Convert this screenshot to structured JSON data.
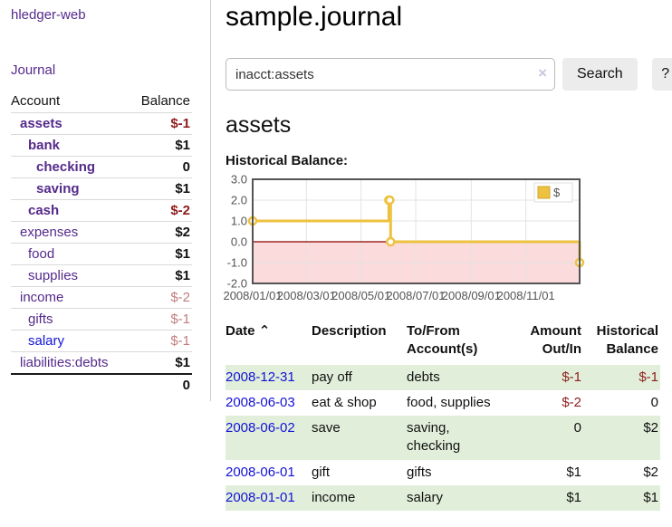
{
  "app": {
    "brand": "hledger-web"
  },
  "sidebar": {
    "journal_link": "Journal",
    "accounts_table": {
      "headers": [
        "Account",
        "Balance"
      ],
      "rows": [
        {
          "account": "assets",
          "indent": 0,
          "balance": "$-1",
          "bold": true,
          "balance_style": "neg",
          "link_color": "purple"
        },
        {
          "account": "bank",
          "indent": 1,
          "balance": "$1",
          "bold": true,
          "balance_style": "normal",
          "link_color": "purple"
        },
        {
          "account": "checking",
          "indent": 2,
          "balance": "0",
          "bold": true,
          "balance_style": "normal",
          "link_color": "purple"
        },
        {
          "account": "saving",
          "indent": 2,
          "balance": "$1",
          "bold": true,
          "balance_style": "normal",
          "link_color": "purple"
        },
        {
          "account": "cash",
          "indent": 1,
          "balance": "$-2",
          "bold": true,
          "balance_style": "neg",
          "link_color": "purple"
        },
        {
          "account": "expenses",
          "indent": 0,
          "balance": "$2",
          "bold": false,
          "balance_style": "normal",
          "link_color": "purple"
        },
        {
          "account": "food",
          "indent": 1,
          "balance": "$1",
          "bold": false,
          "balance_style": "normal",
          "link_color": "purple"
        },
        {
          "account": "supplies",
          "indent": 1,
          "balance": "$1",
          "bold": false,
          "balance_style": "normal",
          "link_color": "purple"
        },
        {
          "account": "income",
          "indent": 0,
          "balance": "$-2",
          "bold": false,
          "balance_style": "dimneg",
          "link_color": "purple"
        },
        {
          "account": "gifts",
          "indent": 1,
          "balance": "$-1",
          "bold": false,
          "balance_style": "dimneg",
          "link_color": "purple"
        },
        {
          "account": "salary",
          "indent": 1,
          "balance": "$-1",
          "bold": false,
          "balance_style": "dimneg",
          "link_color": "blue"
        },
        {
          "account": "liabilities:debts",
          "indent": 0,
          "balance": "$1",
          "bold": false,
          "balance_style": "normal",
          "link_color": "purple"
        }
      ],
      "total": "0"
    }
  },
  "main": {
    "title": "sample.journal",
    "search": {
      "value": "inacct:assets",
      "clear_icon": "×",
      "button_label": "Search",
      "help_label": "?"
    },
    "account_heading": "assets",
    "chart_title": "Historical Balance:"
  },
  "chart_data": {
    "type": "line",
    "title": "Historical Balance:",
    "series": [
      {
        "name": "$",
        "color": "#edc240",
        "steps": true,
        "points": [
          [
            "2008-01-01",
            1
          ],
          [
            "2008-06-01",
            2
          ],
          [
            "2008-06-02",
            2
          ],
          [
            "2008-06-03",
            0
          ],
          [
            "2008-12-31",
            -1
          ]
        ]
      }
    ],
    "xlim": [
      "2008-01-01",
      "2008-12-31"
    ],
    "ylim": [
      -2,
      3
    ],
    "y_ticks": [
      "3.0",
      "2.0",
      "1.0",
      "0.0",
      "-1.0",
      "-2.0"
    ],
    "x_ticks": [
      "2008/01/01",
      "2008/03/01",
      "2008/05/01",
      "2008/07/01",
      "2008/09/01",
      "2008/11/01"
    ],
    "grid": true,
    "legend_position": "top-right",
    "legend_label": "$",
    "colors": {
      "border": "#545454",
      "gridline": "#e3e3e3",
      "tick_label": "#545454",
      "zero_line": "#8b0000",
      "negative_region_fill": "#fbdbdb",
      "marker_fill": "#ffffff"
    }
  },
  "register": {
    "headers": [
      {
        "label": "Date",
        "sort_icon": "⌃",
        "sorted": true
      },
      {
        "label": "Description"
      },
      {
        "label": "To/From Account(s)"
      },
      {
        "label": "Amount Out/In",
        "align": "right"
      },
      {
        "label": "Historical Balance",
        "align": "right"
      }
    ],
    "rows": [
      {
        "date": "2008-12-31",
        "description": "pay off",
        "accounts": "debts",
        "amount": "$-1",
        "amount_neg": true,
        "balance": "$-1",
        "balance_neg": true,
        "striped": true
      },
      {
        "date": "2008-06-03",
        "description": "eat & shop",
        "accounts": "food, supplies",
        "amount": "$-2",
        "amount_neg": true,
        "balance": "0",
        "balance_neg": false,
        "striped": false
      },
      {
        "date": "2008-06-02",
        "description": "save",
        "accounts": "saving, checking",
        "amount": "0",
        "amount_neg": false,
        "balance": "$2",
        "balance_neg": false,
        "striped": true
      },
      {
        "date": "2008-06-01",
        "description": "gift",
        "accounts": "gifts",
        "amount": "$1",
        "amount_neg": false,
        "balance": "$2",
        "balance_neg": false,
        "striped": false
      },
      {
        "date": "2008-01-01",
        "description": "income",
        "accounts": "salary",
        "amount": "$1",
        "amount_neg": false,
        "balance": "$1",
        "balance_neg": false,
        "striped": true
      }
    ]
  },
  "colors": {
    "link_purple": "#552a8b",
    "link_blue": "#1212d6",
    "negative": "#8f1d1d",
    "negative_dim": "#c17e7e",
    "row_green": "#e1efda",
    "series_gold": "#edc240"
  }
}
